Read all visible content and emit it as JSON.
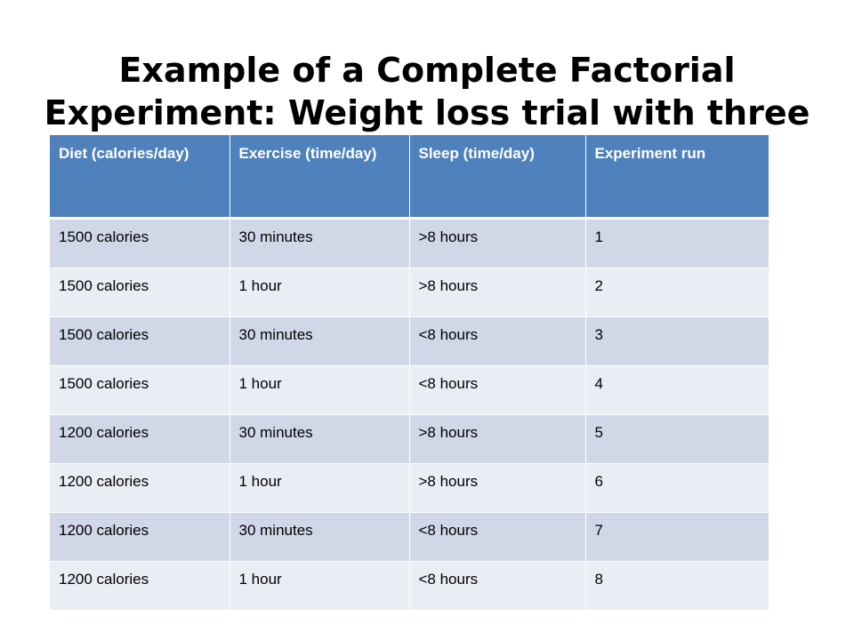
{
  "title": "Example of a Complete Factorial Experiment: Weight loss trial with three factors",
  "table": {
    "headers": [
      "Diet (calories/day)",
      "Exercise (time/day)",
      "Sleep (time/day)",
      "Experiment run"
    ],
    "rows": [
      [
        "1500 calories",
        "30 minutes",
        ">8 hours",
        "1"
      ],
      [
        "1500 calories",
        "1 hour",
        ">8 hours",
        "2"
      ],
      [
        "1500 calories",
        "30 minutes",
        "<8 hours",
        "3"
      ],
      [
        "1500 calories",
        "1 hour",
        "<8 hours",
        "4"
      ],
      [
        "1200 calories",
        "30 minutes",
        ">8 hours",
        "5"
      ],
      [
        "1200 calories",
        "1 hour",
        ">8 hours",
        "6"
      ],
      [
        "1200 calories",
        "30 minutes",
        "<8 hours",
        "7"
      ],
      [
        "1200 calories",
        "1 hour",
        "<8 hours",
        "8"
      ]
    ]
  },
  "colors": {
    "header_bg": "#4f81bd",
    "row_band_dark": "#d0d8e8",
    "row_band_light": "#e9edf4"
  }
}
